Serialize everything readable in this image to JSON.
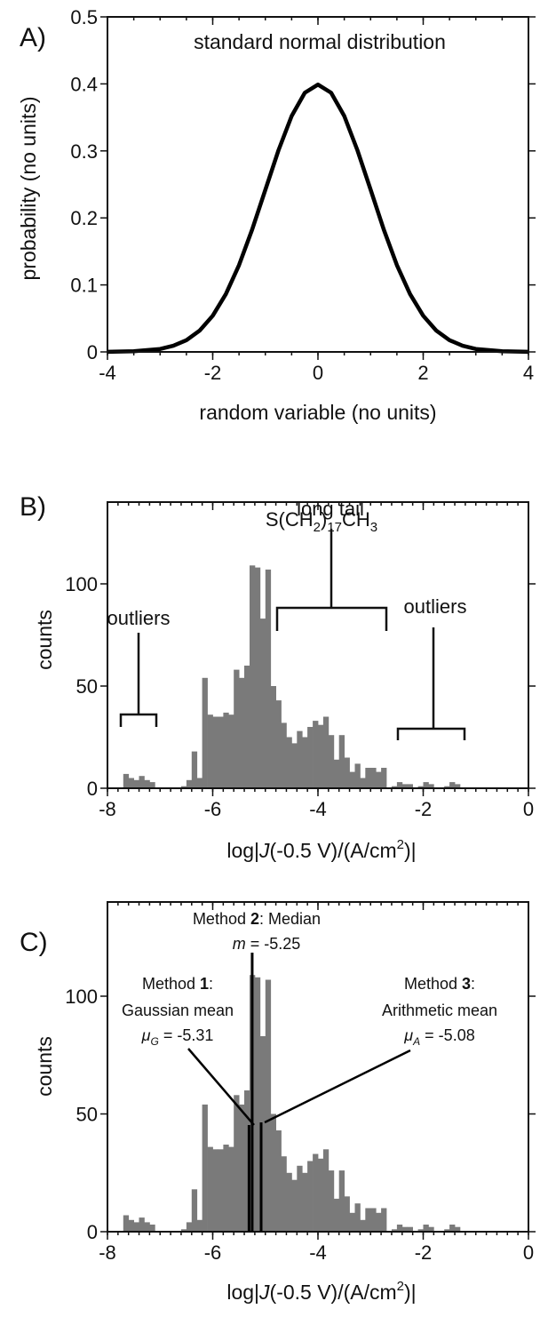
{
  "chart_data": [
    {
      "panel_label": "A)",
      "type": "line",
      "title": "standard normal distribution",
      "xlabel": "random variable (no units)",
      "ylabel": "probability (no units)",
      "xlim": [
        -4,
        4
      ],
      "ylim": [
        0,
        0.5
      ],
      "x_ticks": [
        "-4",
        "-2",
        "0",
        "2",
        "4"
      ],
      "y_ticks": [
        "0",
        "0.1",
        "0.2",
        "0.3",
        "0.4",
        "0.5"
      ],
      "series": [
        {
          "x": [
            -4.0,
            -3.5,
            -3.0,
            -2.75,
            -2.5,
            -2.25,
            -2.0,
            -1.75,
            -1.5,
            -1.25,
            -1.0,
            -0.75,
            -0.5,
            -0.25,
            0.0,
            0.25,
            0.5,
            0.75,
            1.0,
            1.25,
            1.5,
            1.75,
            2.0,
            2.25,
            2.5,
            2.75,
            3.0,
            3.5,
            4.0
          ],
          "values": [
            0.0001,
            0.0009,
            0.0044,
            0.0091,
            0.0175,
            0.0317,
            0.054,
            0.0863,
            0.1295,
            0.1826,
            0.242,
            0.3011,
            0.3521,
            0.3867,
            0.3989,
            0.3867,
            0.3521,
            0.3011,
            0.242,
            0.1826,
            0.1295,
            0.0863,
            0.054,
            0.0317,
            0.0175,
            0.0091,
            0.0044,
            0.0009,
            0.0001
          ]
        }
      ],
      "grid": false
    },
    {
      "panel_label": "B)",
      "type": "bar",
      "title_parts": {
        "a": "S(CH",
        "sub1": "2",
        "b": ")",
        "sub2": "17",
        "c": "CH",
        "sub3": "3"
      },
      "xlabel_parts": {
        "a": "log|",
        "j": "J",
        "b": "(-0.5 V)/(A/cm",
        "sup": "2",
        "c": ")|"
      },
      "ylabel": "counts",
      "xlim": [
        -8,
        0
      ],
      "ylim": [
        0,
        140
      ],
      "x_ticks": [
        "-8",
        "-6",
        "-4",
        "-2",
        "0"
      ],
      "y_ticks": [
        "0",
        "50",
        "100"
      ],
      "bin_width": 0.1,
      "bins": [
        {
          "x": -7.7,
          "v": 7
        },
        {
          "x": -7.6,
          "v": 5
        },
        {
          "x": -7.5,
          "v": 4
        },
        {
          "x": -7.4,
          "v": 6
        },
        {
          "x": -7.3,
          "v": 4
        },
        {
          "x": -7.2,
          "v": 3
        },
        {
          "x": -6.6,
          "v": 1
        },
        {
          "x": -6.5,
          "v": 4
        },
        {
          "x": -6.4,
          "v": 18
        },
        {
          "x": -6.3,
          "v": 5
        },
        {
          "x": -6.2,
          "v": 54
        },
        {
          "x": -6.1,
          "v": 36
        },
        {
          "x": -6.0,
          "v": 35
        },
        {
          "x": -5.9,
          "v": 35
        },
        {
          "x": -5.8,
          "v": 37
        },
        {
          "x": -5.7,
          "v": 36
        },
        {
          "x": -5.6,
          "v": 58
        },
        {
          "x": -5.5,
          "v": 54
        },
        {
          "x": -5.4,
          "v": 60
        },
        {
          "x": -5.3,
          "v": 109
        },
        {
          "x": -5.2,
          "v": 108
        },
        {
          "x": -5.1,
          "v": 83
        },
        {
          "x": -5.0,
          "v": 107
        },
        {
          "x": -4.9,
          "v": 50
        },
        {
          "x": -4.8,
          "v": 43
        },
        {
          "x": -4.7,
          "v": 32
        },
        {
          "x": -4.6,
          "v": 25
        },
        {
          "x": -4.5,
          "v": 22
        },
        {
          "x": -4.4,
          "v": 28
        },
        {
          "x": -4.3,
          "v": 25
        },
        {
          "x": -4.2,
          "v": 30
        },
        {
          "x": -4.1,
          "v": 33
        },
        {
          "x": -4.0,
          "v": 31
        },
        {
          "x": -3.9,
          "v": 35
        },
        {
          "x": -3.8,
          "v": 26
        },
        {
          "x": -3.7,
          "v": 14
        },
        {
          "x": -3.6,
          "v": 26
        },
        {
          "x": -3.5,
          "v": 15
        },
        {
          "x": -3.4,
          "v": 8
        },
        {
          "x": -3.3,
          "v": 12
        },
        {
          "x": -3.2,
          "v": 5
        },
        {
          "x": -3.1,
          "v": 10
        },
        {
          "x": -3.0,
          "v": 10
        },
        {
          "x": -2.9,
          "v": 8
        },
        {
          "x": -2.8,
          "v": 10
        },
        {
          "x": -2.6,
          "v": 1
        },
        {
          "x": -2.5,
          "v": 3
        },
        {
          "x": -2.4,
          "v": 2
        },
        {
          "x": -2.3,
          "v": 2
        },
        {
          "x": -2.1,
          "v": 1
        },
        {
          "x": -2.0,
          "v": 3
        },
        {
          "x": -1.9,
          "v": 2
        },
        {
          "x": -1.6,
          "v": 1
        },
        {
          "x": -1.5,
          "v": 3
        },
        {
          "x": -1.4,
          "v": 2
        }
      ],
      "annotations": {
        "outliers_left": "outliers",
        "long_tail": "long tail",
        "outliers_right": "outliers"
      },
      "grid": false
    },
    {
      "panel_label": "C)",
      "type": "bar",
      "xlabel_parts": {
        "a": "log|",
        "j": "J",
        "b": "(-0.5 V)/(A/cm",
        "sup": "2",
        "c": ")|"
      },
      "ylabel": "counts",
      "xlim": [
        -8,
        0
      ],
      "ylim": [
        0,
        140
      ],
      "x_ticks": [
        "-8",
        "-6",
        "-4",
        "-2",
        "0"
      ],
      "y_ticks": [
        "0",
        "50",
        "100"
      ],
      "same_histogram_as_panel": "B)",
      "markers": [
        {
          "method": "Method",
          "num": "1",
          "suffix": ":",
          "desc": "Gaussian mean",
          "sym": "μ",
          "sub": "G",
          "value_text": " = -5.31",
          "x": -5.31
        },
        {
          "method": "Method",
          "num": "2",
          "suffix": ": Median",
          "desc": "",
          "sym": "m",
          "sub": "",
          "value_text": " = -5.25",
          "x": -5.25
        },
        {
          "method": "Method",
          "num": "3",
          "suffix": ":",
          "desc": "Arithmetic mean",
          "sym": "μ",
          "sub": "A",
          "value_text": " = -5.08",
          "x": -5.08
        }
      ],
      "grid": false
    }
  ]
}
